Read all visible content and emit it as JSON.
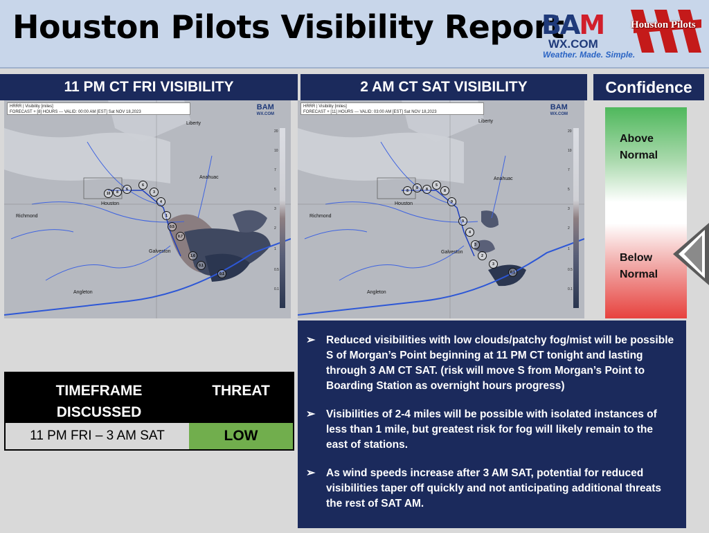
{
  "header": {
    "title": "Houston Pilots Visibility Report",
    "bam_logo": {
      "name": "BAM",
      "domain": "WX.COM",
      "tagline": "Weather. Made. Simple."
    },
    "partner_logo": {
      "text": "Houston Pilots"
    }
  },
  "panels": [
    {
      "title": "11 PM CT FRI VISIBILITY",
      "map_info_line1": "HRRR | Visibility [miles]",
      "map_info_line2": "FORECAST + [8] HOURS --- VALID: 00:00 AM [EST] Sat NOV 18,2023",
      "map_logo": "BAM",
      "map_logo_sub": "WX.COM",
      "cities": {
        "liberty": "Liberty",
        "anahuac": "Anahuac",
        "houston": "Houston",
        "richmond": "Richmond",
        "galveston": "Galveston",
        "angleton": "Angleton"
      },
      "station_values": [
        "10",
        "8",
        "6",
        "6",
        "3",
        "4",
        "1",
        "0.5",
        "0.7",
        "1.6",
        "0.1",
        "0.1"
      ]
    },
    {
      "title": "2 AM CT SAT VISIBILITY",
      "map_info_line1": "HRRR | Visibility [miles]",
      "map_info_line2": "FORECAST + [11] HOURS --- VALID: 03:00 AM [EST] Sat NOV 18,2023",
      "map_logo": "BAM",
      "map_logo_sub": "WX.COM",
      "cities": {
        "liberty": "Liberty",
        "anahuac": "Anahuac",
        "houston": "Houston",
        "richmond": "Richmond",
        "galveston": "Galveston",
        "angleton": "Angleton"
      },
      "station_values": [
        "8",
        "8",
        "8",
        "5",
        "8",
        "9",
        "9",
        "4",
        "3",
        "2",
        "3",
        "0.1"
      ]
    }
  ],
  "colorbar_ticks": [
    "20",
    "10",
    "7",
    "5",
    "3",
    "2",
    "1",
    "0.5",
    "0.1"
  ],
  "confidence": {
    "title": "Confidence",
    "above": "Above Normal",
    "below": "Below Normal",
    "selected": "Below Normal"
  },
  "threat_table": {
    "col1_header": "TIMEFRAME DISCUSSED",
    "col2_header": "THREAT",
    "timeframe": "11 PM FRI – 3 AM SAT",
    "threat": "LOW",
    "threat_color": "#71ae4d"
  },
  "notes": [
    "Reduced visibilities with low clouds/patchy fog/mist will be possible S of Morgan’s Point beginning at 11 PM CT tonight and lasting through 3 AM CT SAT. (risk will move S from Morgan’s Point to Boarding Station as overnight hours progress)",
    "Visibilities of 2-4 miles will be possible with isolated instances of less than 1 mile, but greatest risk for fog will likely remain to the east of stations.",
    "As wind speeds increase after 3 AM SAT, potential for reduced visibilities taper off quickly and not anticipating additional threats the rest of SAT AM."
  ],
  "colors": {
    "navy": "#1b2a5c",
    "header_bg": "#c8d6ea",
    "threat_low": "#71ae4d"
  }
}
